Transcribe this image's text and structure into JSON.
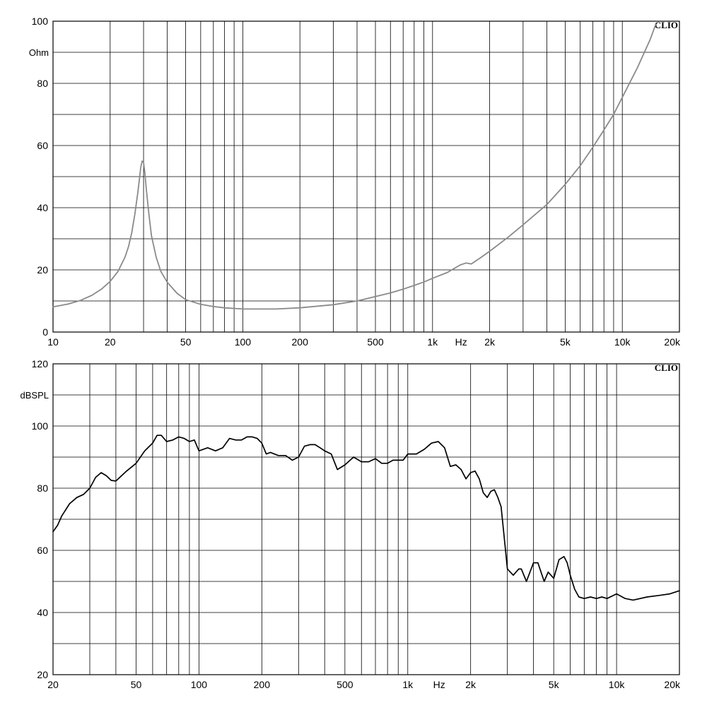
{
  "chart_data": [
    {
      "type": "line",
      "ylabel": "Ohm",
      "xlabel": "Hz",
      "brand": "CLIO",
      "x_scale": "log",
      "xlim": [
        10,
        20000
      ],
      "ylim": [
        0,
        100
      ],
      "y_ticks": [
        0,
        20,
        40,
        60,
        80,
        100
      ],
      "x_ticks": [
        {
          "v": 10,
          "label": "10"
        },
        {
          "v": 20,
          "label": "20"
        },
        {
          "v": 50,
          "label": "50"
        },
        {
          "v": 100,
          "label": "100"
        },
        {
          "v": 200,
          "label": "200"
        },
        {
          "v": 500,
          "label": "500"
        },
        {
          "v": 1000,
          "label": "1k"
        },
        {
          "v": 2000,
          "label": "2k"
        },
        {
          "v": 5000,
          "label": "5k"
        },
        {
          "v": 10000,
          "label": "10k"
        },
        {
          "v": 20000,
          "label": "20k"
        }
      ],
      "line_color": "#8a8a8a",
      "series": [
        {
          "x": [
            10,
            12,
            14,
            16,
            18,
            20,
            22,
            24,
            25,
            26,
            27,
            28,
            28.5,
            29,
            29.5,
            30,
            30.5,
            31,
            32,
            33,
            35,
            37,
            40,
            45,
            50,
            60,
            70,
            80,
            100,
            150,
            200,
            300,
            400,
            500,
            600,
            700,
            800,
            900,
            1000,
            1200,
            1400,
            1500,
            1600,
            1800,
            2000,
            2500,
            3000,
            4000,
            5000,
            6000,
            7000,
            8000,
            9000,
            10000,
            12000,
            14000,
            15000
          ],
          "y": [
            8.1,
            9.0,
            10.2,
            11.8,
            13.8,
            16.3,
            19.5,
            24.2,
            27.5,
            32,
            38,
            45,
            49,
            53,
            55,
            54.5,
            51,
            46,
            38,
            31,
            24,
            19.5,
            16,
            12.5,
            10.4,
            8.9,
            8.2,
            7.8,
            7.4,
            7.4,
            7.8,
            8.8,
            10.0,
            11.4,
            12.6,
            13.8,
            15.0,
            16.1,
            17.3,
            19.2,
            21.6,
            22.2,
            21.9,
            24.0,
            26.0,
            30.5,
            34.5,
            41.0,
            47.5,
            53.5,
            59.5,
            65.0,
            70.0,
            75.5,
            85.0,
            94.0,
            99.0
          ]
        }
      ]
    },
    {
      "type": "line",
      "ylabel": "dBSPL",
      "xlabel": "Hz",
      "brand": "CLIO",
      "x_scale": "log",
      "xlim": [
        20,
        20000
      ],
      "ylim": [
        20,
        120
      ],
      "y_ticks": [
        20,
        40,
        60,
        80,
        100,
        120
      ],
      "x_ticks": [
        {
          "v": 20,
          "label": "20"
        },
        {
          "v": 50,
          "label": "50"
        },
        {
          "v": 100,
          "label": "100"
        },
        {
          "v": 200,
          "label": "200"
        },
        {
          "v": 500,
          "label": "500"
        },
        {
          "v": 1000,
          "label": "1k"
        },
        {
          "v": 2000,
          "label": "2k"
        },
        {
          "v": 5000,
          "label": "5k"
        },
        {
          "v": 10000,
          "label": "10k"
        },
        {
          "v": 20000,
          "label": "20k"
        }
      ],
      "line_color": "#000000",
      "series": [
        {
          "x": [
            20,
            21,
            22,
            24,
            26,
            28,
            30,
            32,
            34,
            36,
            38,
            40,
            45,
            50,
            55,
            60,
            63,
            66,
            70,
            75,
            80,
            85,
            90,
            95,
            100,
            110,
            120,
            130,
            140,
            150,
            160,
            170,
            180,
            190,
            200,
            210,
            220,
            240,
            260,
            280,
            300,
            320,
            340,
            360,
            380,
            400,
            430,
            460,
            500,
            550,
            600,
            650,
            700,
            750,
            800,
            850,
            900,
            950,
            1000,
            1100,
            1200,
            1300,
            1400,
            1500,
            1600,
            1700,
            1800,
            1900,
            2000,
            2100,
            2200,
            2300,
            2400,
            2500,
            2600,
            2700,
            2800,
            3000,
            3200,
            3400,
            3500,
            3700,
            4000,
            4200,
            4500,
            4700,
            5000,
            5300,
            5600,
            5800,
            6000,
            6300,
            6600,
            7000,
            7500,
            8000,
            8500,
            9000,
            10000,
            11000,
            12000,
            14000,
            16000,
            18000,
            20000
          ],
          "y": [
            66,
            68,
            71,
            75,
            77,
            78,
            80,
            83.5,
            85,
            84,
            82.5,
            82.3,
            85.5,
            88,
            92,
            94.5,
            97,
            97,
            95,
            95.5,
            96.5,
            96,
            95,
            95.5,
            92,
            93,
            92,
            93,
            96,
            95.5,
            95.5,
            96.5,
            96.5,
            96,
            94.5,
            91,
            91.5,
            90.5,
            90.5,
            89,
            90,
            93.5,
            94,
            94,
            93,
            92,
            91,
            86,
            87.5,
            90,
            88.5,
            88.5,
            89.5,
            88,
            88,
            89,
            89,
            89,
            91,
            91,
            92.5,
            94.5,
            95,
            93,
            87,
            87.5,
            86,
            83,
            85,
            85.5,
            83,
            78.5,
            77,
            79,
            79.5,
            77,
            74,
            54,
            52,
            54,
            54,
            50,
            56,
            56,
            50,
            53,
            51,
            57,
            58,
            56,
            52,
            47.5,
            45,
            44.5,
            45,
            44.5,
            45,
            44.5,
            46,
            44.5,
            44,
            45,
            45.5,
            46,
            47
          ]
        }
      ]
    }
  ]
}
